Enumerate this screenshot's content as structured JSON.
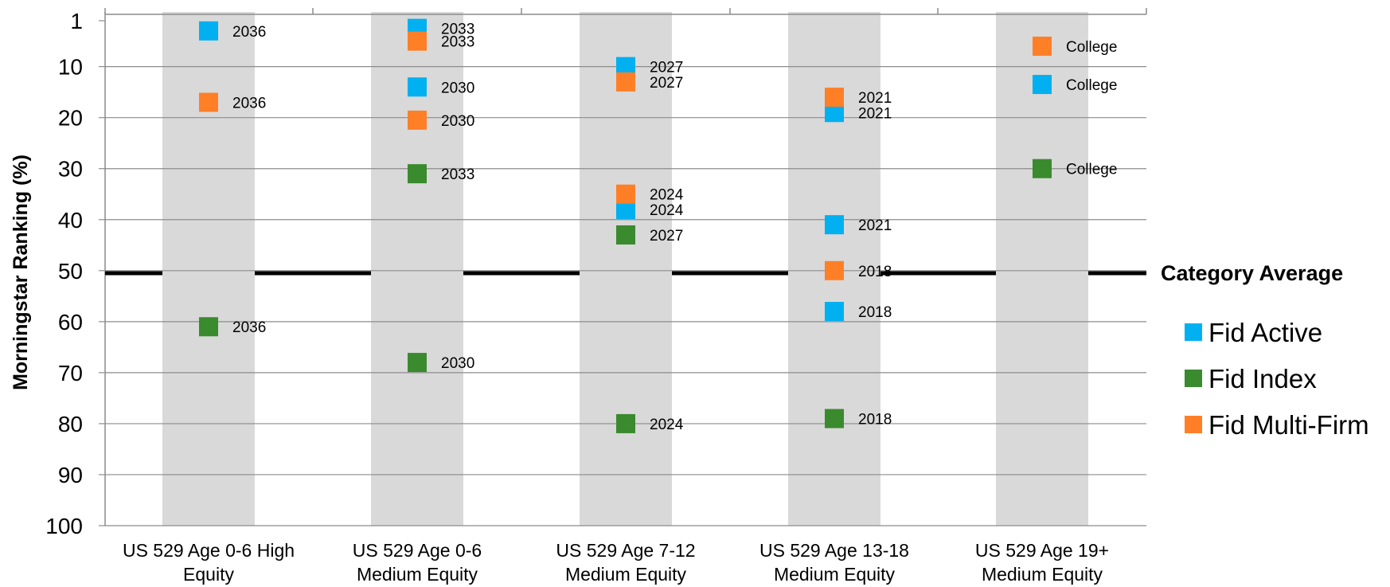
{
  "chart_data": {
    "type": "scatter",
    "title": "",
    "ylabel": "Morningstar Ranking (%)",
    "xlabel": "",
    "ylim": [
      1,
      100
    ],
    "y_inverted": true,
    "yticks": [
      "1",
      "10",
      "20",
      "30",
      "40",
      "50",
      "60",
      "70",
      "80",
      "90",
      "100"
    ],
    "grid": true,
    "categories": [
      [
        "US 529 Age 0-6 High",
        "Equity"
      ],
      [
        "US 529 Age 0-6",
        "Medium Equity"
      ],
      [
        "US 529 Age 7-12",
        "Medium Equity"
      ],
      [
        "US 529 Age 13-18",
        "Medium Equity"
      ],
      [
        "US 529 Age 19+",
        "Medium Equity"
      ]
    ],
    "reference_line": {
      "label": "Category Average",
      "value": 50.5
    },
    "legend_position": "right",
    "series": [
      {
        "name": "Fid Active",
        "color": "#00B0F0",
        "points": [
          {
            "category": 0,
            "y": 3,
            "label": "2036"
          },
          {
            "category": 1,
            "y": 2.5,
            "label": "2033"
          },
          {
            "category": 1,
            "y": 14,
            "label": "2030"
          },
          {
            "category": 2,
            "y": 10,
            "label": "2027"
          },
          {
            "category": 2,
            "y": 38,
            "label": "2024"
          },
          {
            "category": 3,
            "y": 19,
            "label": "2021"
          },
          {
            "category": 3,
            "y": 41,
            "label": "2021"
          },
          {
            "category": 3,
            "y": 58,
            "label": "2018"
          },
          {
            "category": 4,
            "y": 13.5,
            "label": "College"
          }
        ]
      },
      {
        "name": "Fid Index",
        "color": "#3A8A2E",
        "points": [
          {
            "category": 0,
            "y": 61,
            "label": "2036"
          },
          {
            "category": 1,
            "y": 31,
            "label": "2033"
          },
          {
            "category": 1,
            "y": 68,
            "label": "2030"
          },
          {
            "category": 2,
            "y": 43,
            "label": "2027"
          },
          {
            "category": 2,
            "y": 80,
            "label": "2024"
          },
          {
            "category": 3,
            "y": 79,
            "label": "2018"
          },
          {
            "category": 4,
            "y": 30,
            "label": "College"
          }
        ]
      },
      {
        "name": "Fid Multi-Firm",
        "color": "#FF7F27",
        "points": [
          {
            "category": 0,
            "y": 17,
            "label": "2036"
          },
          {
            "category": 1,
            "y": 5,
            "label": "2033"
          },
          {
            "category": 1,
            "y": 20.5,
            "label": "2030"
          },
          {
            "category": 2,
            "y": 13,
            "label": "2027"
          },
          {
            "category": 2,
            "y": 35,
            "label": "2024"
          },
          {
            "category": 3,
            "y": 16,
            "label": "2021"
          },
          {
            "category": 3,
            "y": 50,
            "label": "2018"
          },
          {
            "category": 4,
            "y": 6,
            "label": "College"
          }
        ]
      }
    ]
  }
}
